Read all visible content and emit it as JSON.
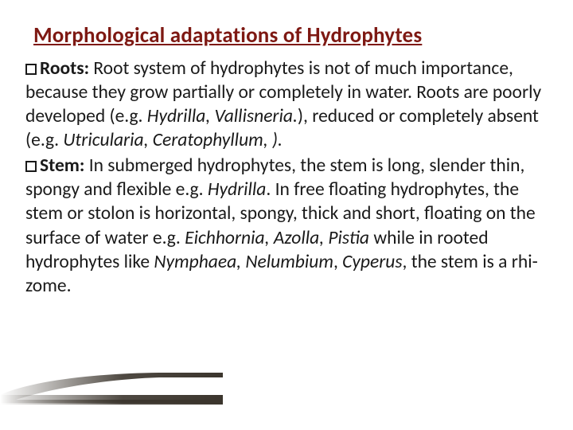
{
  "title": {
    "text": "Morphological adaptations of Hydrophytes",
    "color": "#7e1913",
    "fontSizePx": 27,
    "underline": true
  },
  "body": {
    "fontSizePx": 23.5,
    "color": "#1a1a1a",
    "bulletBorderColor": "#1a1a1a",
    "items": [
      {
        "label": "Roots:",
        "runs": [
          {
            "text": " Root system of hydrophytes is not of much importance, because they grow partially or completely in water. Roots are poorly developed (e.g. "
          },
          {
            "text": "Hydrilla, Vallisneria.",
            "italic": true
          },
          {
            "text": "), reduced or completely absent (e.g. "
          },
          {
            "text": "Utricularia,  Ceratophyllum, ).",
            "italic": true
          }
        ]
      },
      {
        "label": "Stem:",
        "runs": [
          {
            "text": " In submerged hydrophytes, the stem is long, slender thin, spongy and flexible e.g. "
          },
          {
            "text": "Hydrilla",
            "italic": true
          },
          {
            "text": ". In free floating hydrophytes, the stem or stolon is horizontal, spongy, thick and short, floating on the surface of water e.g. "
          },
          {
            "text": "Eichhornia, Azolla, Pistia",
            "italic": true
          },
          {
            "text": " while in rooted hydrophytes like "
          },
          {
            "text": "Nymphaea, Nelumbium",
            "italic": true
          },
          {
            "text": ", "
          },
          {
            "text": "Cyperus",
            "italic": true
          },
          {
            "text": ", the stem is a rhi-zome."
          }
        ]
      }
    ]
  },
  "decor": {
    "stroke": "#3b352d",
    "fill": "#3b352d",
    "fadeStart": "rgba(59,53,45,0)",
    "fadeEnd": "rgba(59,53,45,0.9)"
  }
}
